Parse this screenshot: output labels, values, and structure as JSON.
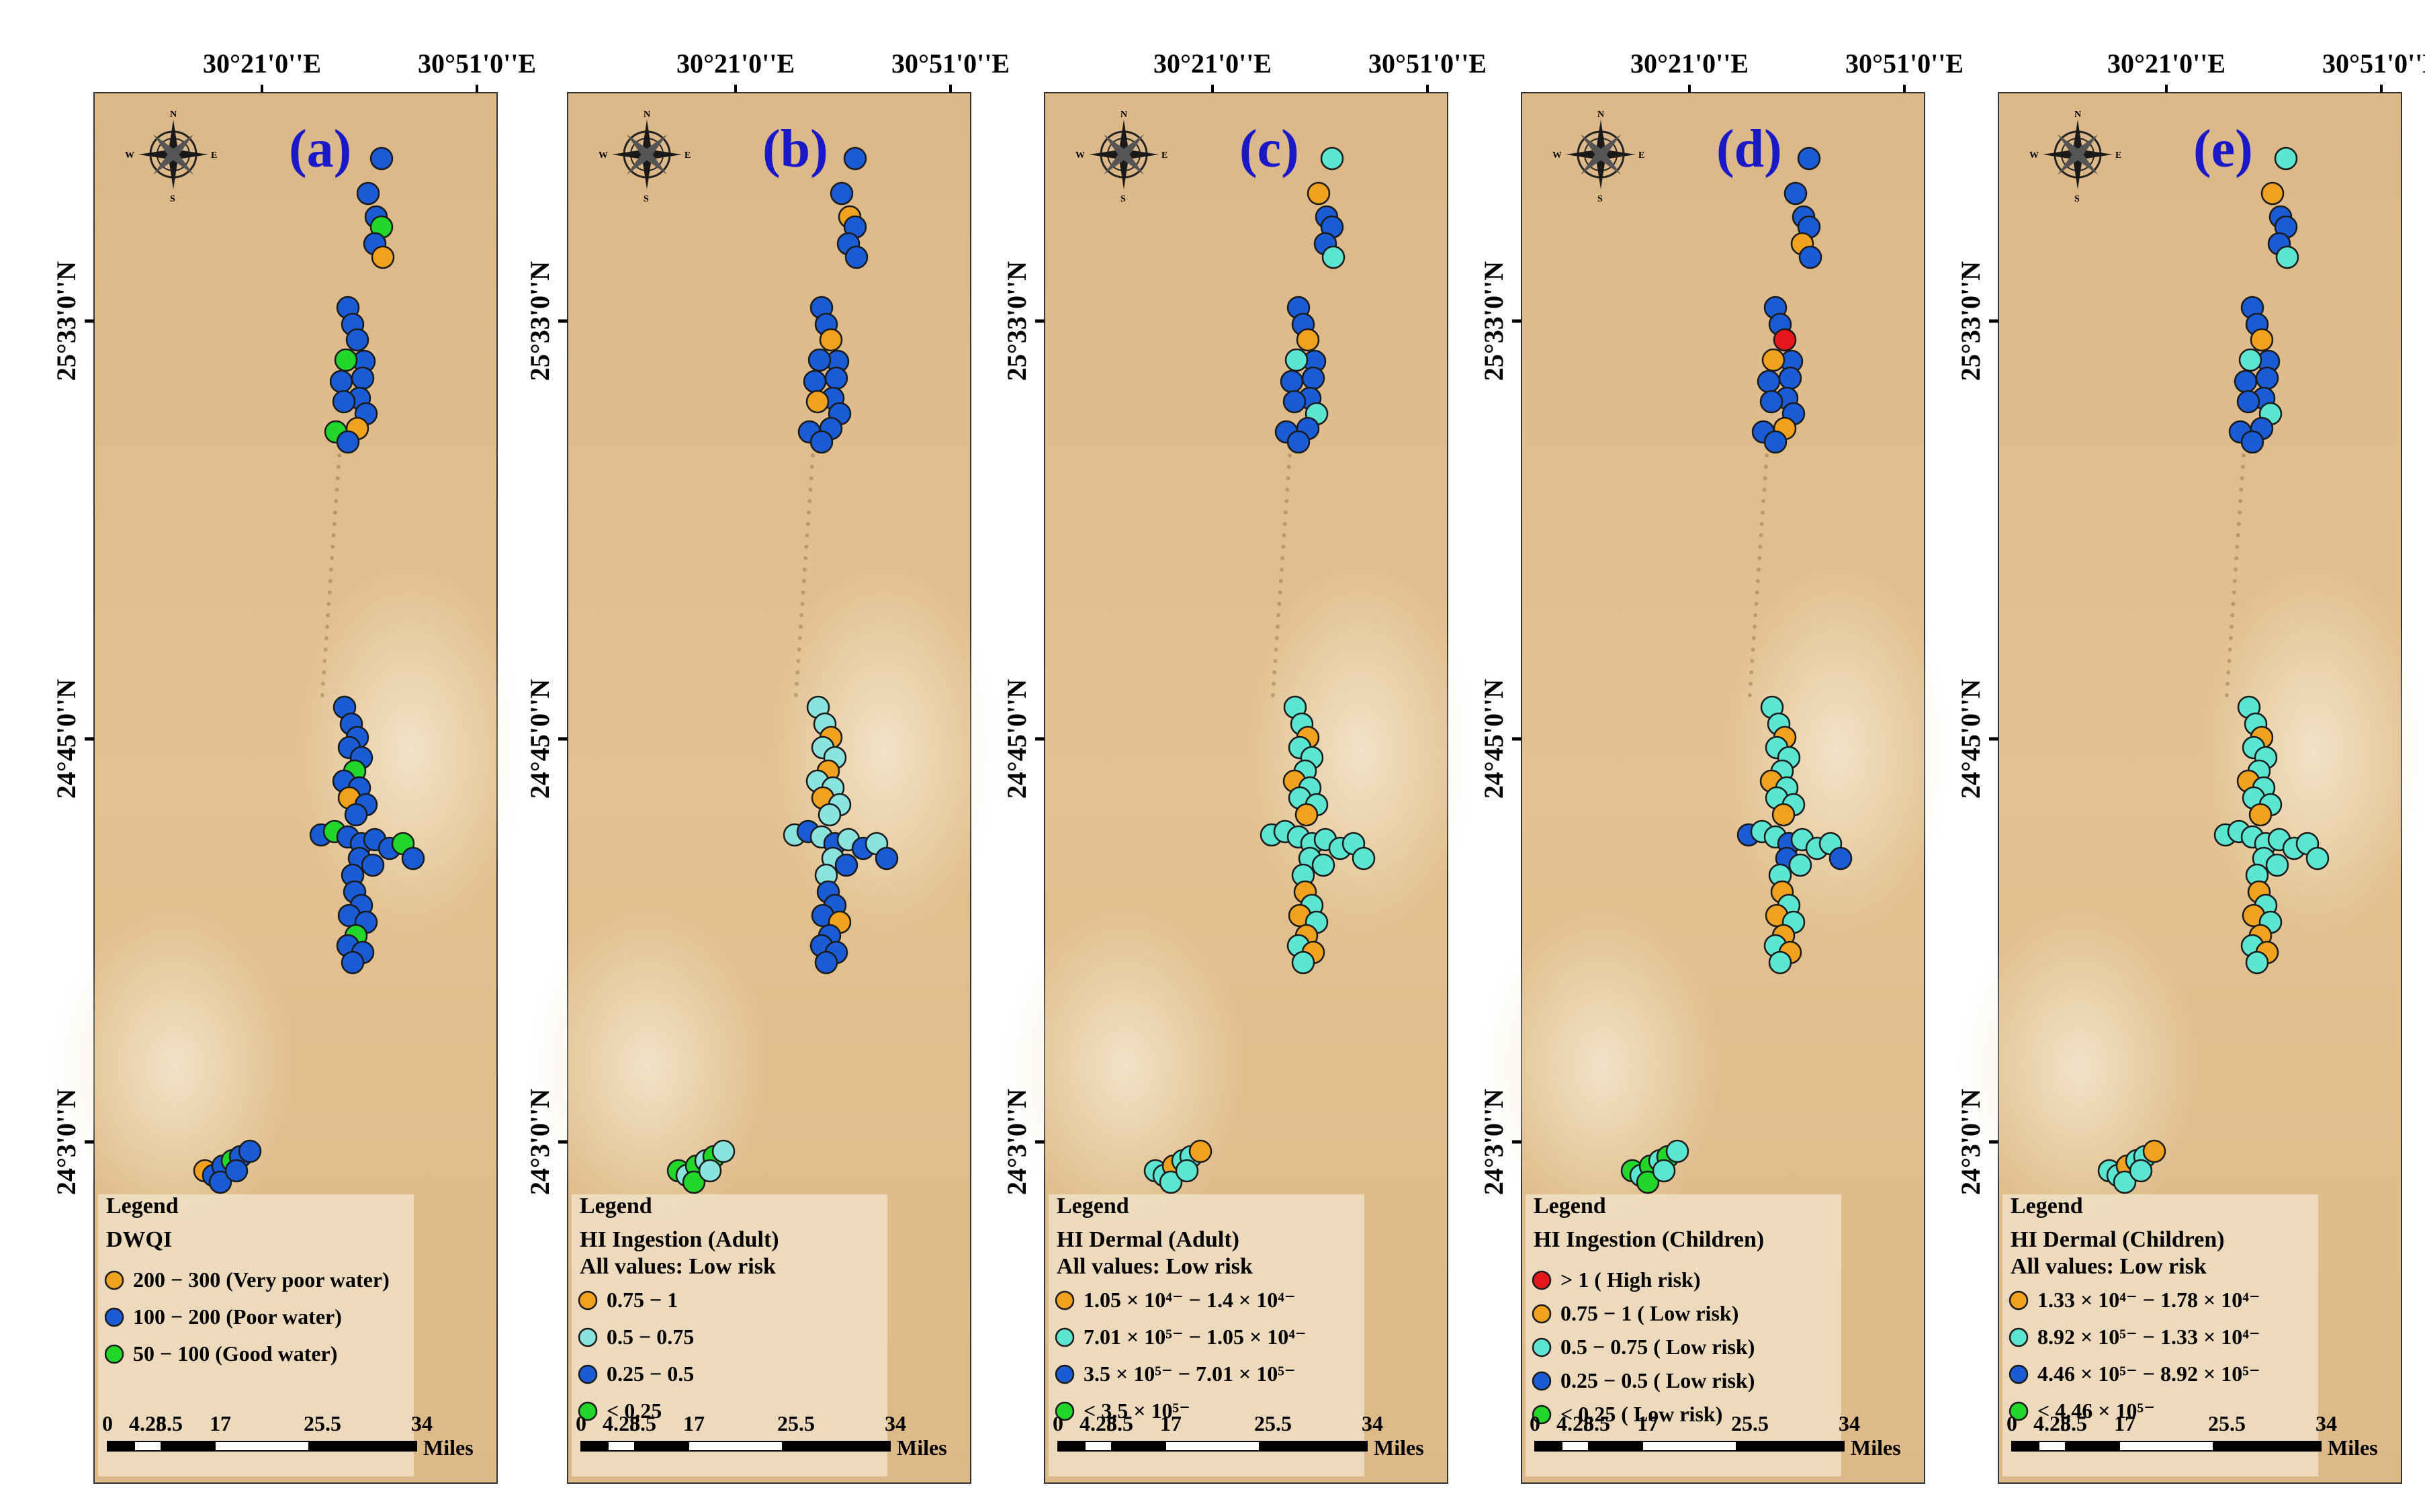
{
  "top_labels": [
    "30°21'0''E",
    "30°51'0''E"
  ],
  "left_labels": [
    "25°33'0''N",
    "24°45'0''N",
    "24°3'0''N"
  ],
  "colors": {
    "orange": "#f0a21e",
    "blue": "#1a5bd6",
    "green": "#22d62a",
    "cyan": "#5ce6d2",
    "ltcyan": "#8be3dd",
    "red": "#e5161c",
    "label_blue": "#1a19c8"
  },
  "scalebar": {
    "ticks": [
      "0",
      "4.25",
      "8.5",
      "17",
      "25.5",
      "34"
    ],
    "unit": "Miles"
  },
  "panels": [
    {
      "tag": "(a)",
      "legend_word": "Legend",
      "legend_title": "DWQI",
      "legend_subtitle": "",
      "legend_items": [
        {
          "color": "orange",
          "label": "200 − 300 (Very poor water)"
        },
        {
          "color": "blue",
          "label": "100 − 200 (Poor water)"
        },
        {
          "color": "green",
          "label": "50 − 100 (Good water)"
        }
      ]
    },
    {
      "tag": "(b)",
      "legend_word": "Legend",
      "legend_title": "HI Ingestion (Adult)",
      "legend_subtitle": "All values: Low risk",
      "legend_items": [
        {
          "color": "orange",
          "label": "0.75 − 1"
        },
        {
          "color": "ltcyan",
          "label": "0.5 − 0.75"
        },
        {
          "color": "blue",
          "label": "0.25 − 0.5"
        },
        {
          "color": "green",
          "label": "< 0.25"
        }
      ]
    },
    {
      "tag": "(c)",
      "legend_word": "Legend",
      "legend_title": "HI Dermal (Adult)",
      "legend_subtitle": "All values: Low risk",
      "legend_items": [
        {
          "color": "orange",
          "label": "1.05 × 10⁴⁻ − 1.4 × 10⁴⁻"
        },
        {
          "color": "cyan",
          "label": "7.01 × 10⁵⁻ − 1.05 × 10⁴⁻"
        },
        {
          "color": "blue",
          "label": "3.5 × 10⁵⁻ − 7.01 × 10⁵⁻"
        },
        {
          "color": "green",
          "label": "< 3.5 × 10⁵⁻"
        }
      ]
    },
    {
      "tag": "(d)",
      "legend_word": "Legend",
      "legend_title": "HI Ingestion (Children)",
      "legend_subtitle": "",
      "legend_items": [
        {
          "color": "red",
          "label": "> 1 ( High risk)"
        },
        {
          "color": "orange",
          "label": "0.75 − 1 ( Low risk)"
        },
        {
          "color": "cyan",
          "label": "0.5 − 0.75 ( Low risk)"
        },
        {
          "color": "blue",
          "label": "0.25 − 0.5 ( Low risk)"
        },
        {
          "color": "green",
          "label": "< 0.25 ( Low risk)"
        }
      ]
    },
    {
      "tag": "(e)",
      "legend_word": "Legend",
      "legend_title": "HI Dermal (Children)",
      "legend_subtitle": "All values: Low risk",
      "legend_items": [
        {
          "color": "orange",
          "label": "1.33 × 10⁴⁻ − 1.78 × 10⁴⁻"
        },
        {
          "color": "cyan",
          "label": "8.92 × 10⁵⁻ − 1.33 × 10⁴⁻"
        },
        {
          "color": "blue",
          "label": "4.46 × 10⁵⁻ − 8.92 × 10⁵⁻"
        },
        {
          "color": "green",
          "label": "< 4.46 × 10⁵⁻"
        }
      ]
    }
  ]
}
